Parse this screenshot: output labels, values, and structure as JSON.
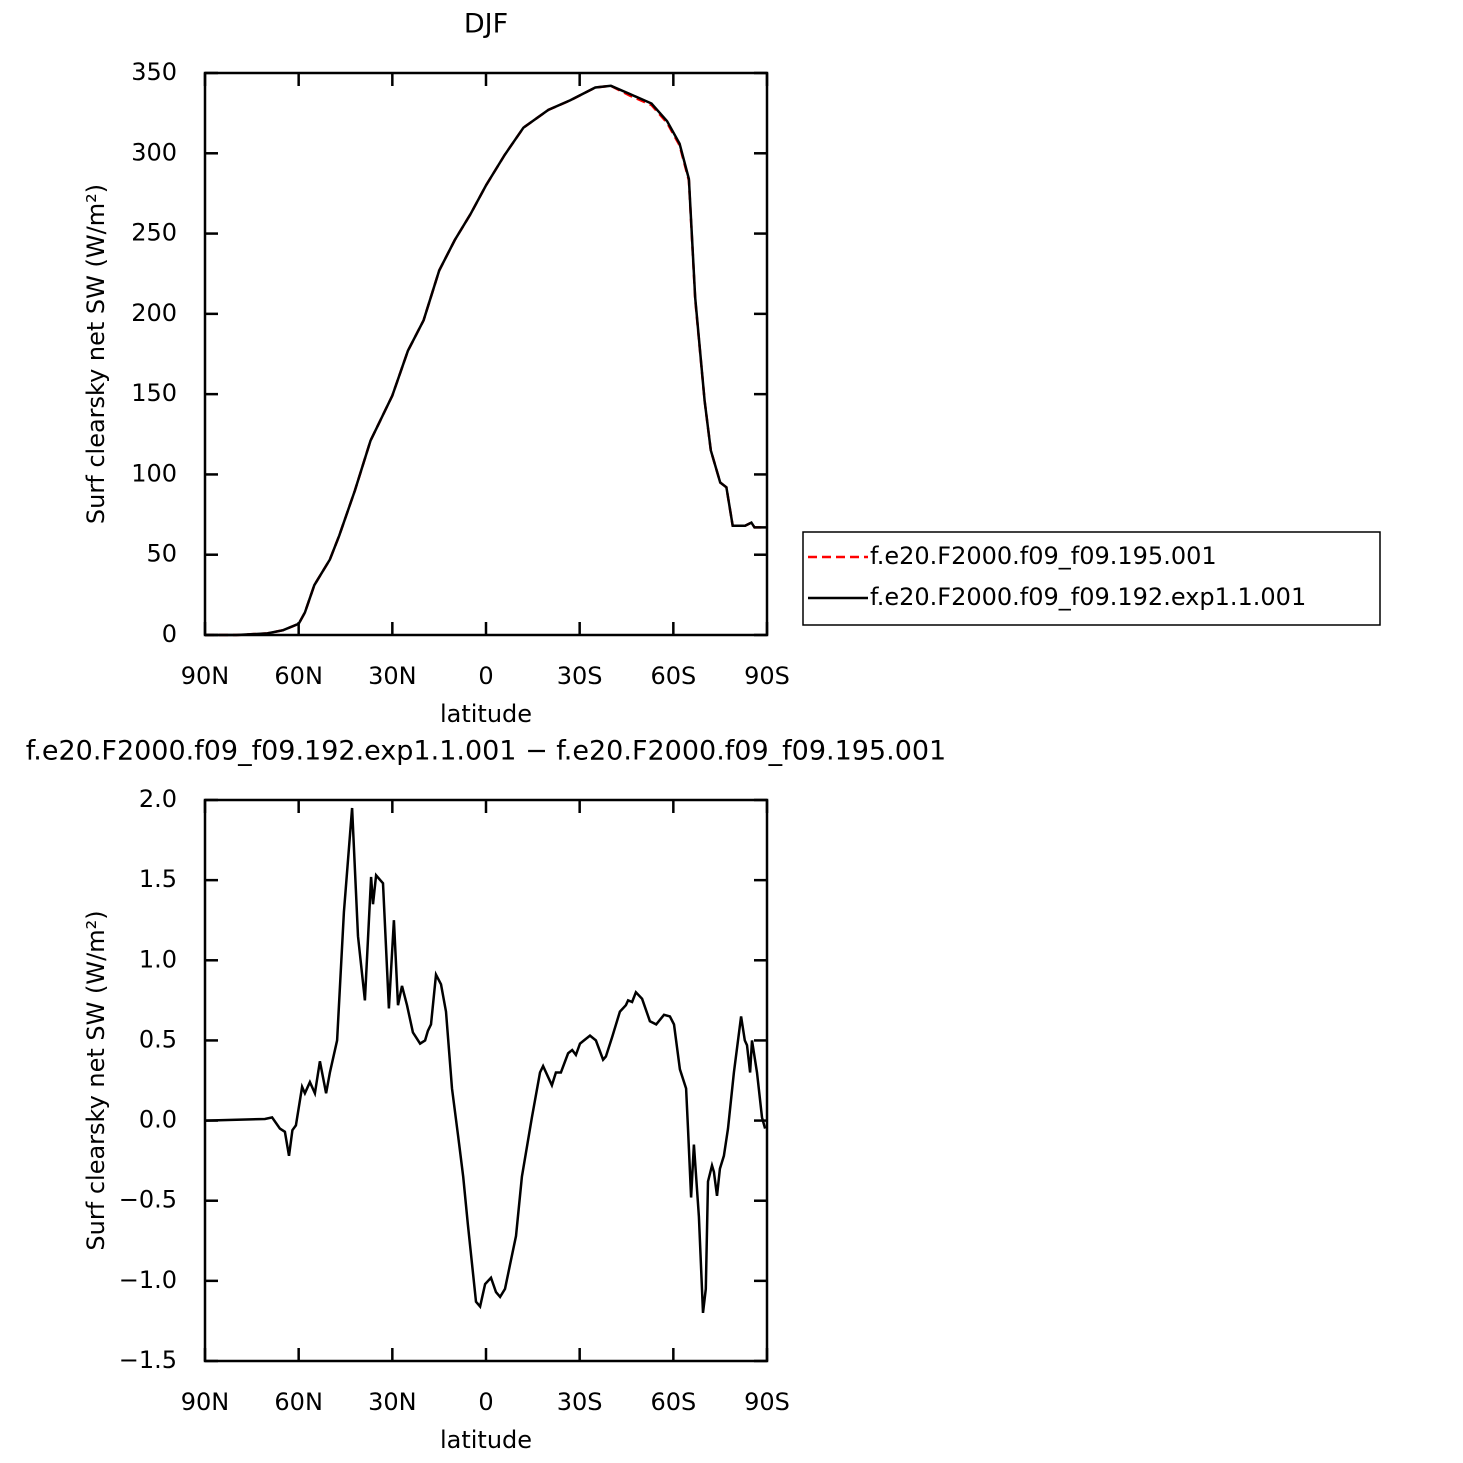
{
  "chart_data": [
    {
      "type": "line",
      "title": "DJF",
      "x_label": "latitude",
      "y_label": "Surf clearsky net SW (W/m²)",
      "xlim": [
        90,
        -90
      ],
      "xticks": [
        {
          "value": 90,
          "label": "90N"
        },
        {
          "value": 60,
          "label": "60N"
        },
        {
          "value": 30,
          "label": "30N"
        },
        0,
        {
          "value": -30,
          "label": "30S"
        },
        {
          "value": -60,
          "label": "60S"
        },
        {
          "value": -90,
          "label": "90S"
        }
      ],
      "ylim": [
        0,
        350
      ],
      "yticks": [
        0,
        50,
        100,
        150,
        200,
        250,
        300,
        350
      ],
      "legend": "right",
      "x": [
        90,
        80,
        70,
        65,
        60,
        58,
        55,
        50,
        47,
        42,
        37,
        30,
        25,
        20,
        15,
        10,
        5,
        0,
        -6,
        -12,
        -20,
        -27,
        -35,
        -40,
        -46,
        -53,
        -58,
        -62,
        -65,
        -67,
        -70,
        -72,
        -75,
        -77,
        -79,
        -83,
        -85,
        -86,
        -90
      ],
      "series": [
        {
          "name": "f.e20.F2000.f09_f09.195.001",
          "color": "#ff0000",
          "dashed": true,
          "values": [
            0,
            0,
            1,
            3,
            7,
            14,
            31,
            47,
            62,
            90,
            121,
            149,
            177,
            196,
            227,
            246,
            262,
            280,
            299,
            316,
            327,
            333,
            341,
            342,
            336,
            330,
            319,
            305,
            283,
            209,
            146,
            115,
            95,
            92,
            68,
            68,
            70,
            67,
            67
          ]
        },
        {
          "name": "f.e20.F2000.f09_f09.192.exp1.1.001",
          "color": "#000000",
          "dashed": false,
          "values": [
            0,
            0,
            1,
            3,
            7,
            14,
            31,
            47,
            62,
            90,
            121,
            149,
            177,
            196,
            227,
            246,
            262,
            280,
            299,
            316,
            327,
            333,
            341,
            342,
            337,
            331,
            320,
            306,
            284,
            210,
            146,
            115,
            95,
            92,
            68,
            68,
            70,
            67,
            67
          ]
        }
      ]
    },
    {
      "type": "line",
      "title": "f.e20.F2000.f09_f09.192.exp1.1.001 − f.e20.F2000.f09_f09.195.001",
      "x_label": "latitude",
      "y_label": "Surf clearsky net SW (W/m²)",
      "xlim": [
        90,
        -90
      ],
      "xticks": [
        {
          "value": 90,
          "label": "90N"
        },
        {
          "value": 60,
          "label": "60N"
        },
        {
          "value": 30,
          "label": "30N"
        },
        0,
        {
          "value": -30,
          "label": "30S"
        },
        {
          "value": -60,
          "label": "60S"
        },
        {
          "value": -90,
          "label": "90S"
        }
      ],
      "ylim": [
        -1.5,
        2
      ],
      "yticks": [
        {
          "value": -1.5,
          "label": "−1.5"
        },
        {
          "value": -1,
          "label": "−1.0"
        },
        {
          "value": -0.5,
          "label": "−0.5"
        },
        {
          "value": 0,
          "label": "0.0"
        },
        0.5,
        {
          "value": 1,
          "label": "1.0"
        },
        1.5,
        {
          "value": 2,
          "label": "2.0"
        }
      ],
      "x": [
        90,
        70.8,
        68.5,
        66,
        64.4,
        63.1,
        62,
        60.9,
        58.9,
        58,
        56.4,
        54.8,
        53.2,
        51.2,
        50,
        47.7,
        45.5,
        42.9,
        41,
        38.8,
        36.8,
        36.2,
        35.2,
        33.9,
        33,
        31.1,
        29.5,
        28.2,
        26.9,
        25.3,
        23.4,
        21.1,
        19.5,
        18.6,
        17.6,
        16,
        14.4,
        12.8,
        10.9,
        8.9,
        7.3,
        5.8,
        3.2,
        1.9,
        0.3,
        -1.6,
        -3.2,
        -4.5,
        -6.1,
        -7.7,
        -9.6,
        -11.5,
        -14.7,
        -17.3,
        -18.3,
        -21.1,
        -22.4,
        -24,
        -26.3,
        -27.6,
        -28.8,
        -30.1,
        -31.4,
        -33.3,
        -35.2,
        -37.5,
        -38.4,
        -40.4,
        -42.9,
        -44.8,
        -45.5,
        -46.8,
        -48,
        -50,
        -52.5,
        -54.5,
        -57,
        -58.9,
        -60.2,
        -62.1,
        -64.1,
        -64.7,
        -65.7,
        -66.6,
        -68.2,
        -69.5,
        -70.4,
        -71.1,
        -72.4,
        -73,
        -74,
        -74.9,
        -76.2,
        -77.5,
        -79.4,
        -81.7,
        -82.9,
        -83.6,
        -84.6,
        -85.2,
        -86.8,
        -88.4,
        -89.4
      ],
      "series": [
        {
          "color": "#000000",
          "values": [
            0,
            0.01,
            0.02,
            -0.05,
            -0.07,
            -0.22,
            -0.06,
            -0.03,
            0.21,
            0.17,
            0.24,
            0.17,
            0.37,
            0.17,
            0.3,
            0.5,
            1.3,
            1.95,
            1.15,
            0.75,
            1.52,
            1.35,
            1.53,
            1.5,
            1.48,
            0.7,
            1.25,
            0.72,
            0.84,
            0.72,
            0.55,
            0.48,
            0.5,
            0.56,
            0.6,
            0.91,
            0.85,
            0.68,
            0.2,
            -0.1,
            -0.35,
            -0.65,
            -1.13,
            -1.16,
            -1.02,
            -0.98,
            -1.07,
            -1.1,
            -1.05,
            -0.9,
            -0.72,
            -0.35,
            0.02,
            0.3,
            0.34,
            0.22,
            0.3,
            0.3,
            0.42,
            0.44,
            0.41,
            0.48,
            0.5,
            0.53,
            0.5,
            0.38,
            0.4,
            0.52,
            0.68,
            0.72,
            0.75,
            0.74,
            0.8,
            0.76,
            0.62,
            0.6,
            0.66,
            0.65,
            0.6,
            0.32,
            0.2,
            -0.05,
            -0.48,
            -0.15,
            -0.6,
            -1.2,
            -1.05,
            -0.38,
            -0.28,
            -0.32,
            -0.47,
            -0.3,
            -0.22,
            -0.05,
            0.3,
            0.65,
            0.5,
            0.47,
            0.3,
            0.5,
            0.3,
            0.02,
            -0.05
          ]
        }
      ]
    }
  ]
}
